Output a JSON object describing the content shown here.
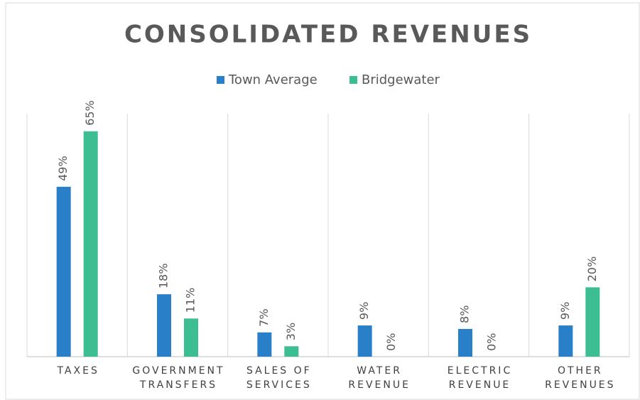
{
  "chart_data": {
    "type": "bar",
    "title": "CONSOLIDATED REVENUES",
    "categories": [
      "TAXES",
      "GOVERNMENT TRANSFERS",
      "SALES OF SERVICES",
      "WATER REVENUE",
      "ELECTRIC REVENUE",
      "OTHER REVENUES"
    ],
    "series": [
      {
        "name": "Town Average",
        "color": "#2a7fc9",
        "values": [
          49,
          18,
          7,
          9,
          8,
          9
        ],
        "value_labels": [
          "49%",
          "18%",
          "7%",
          "9%",
          "8%",
          "9%"
        ]
      },
      {
        "name": "Bridgewater",
        "color": "#3dbd92",
        "values": [
          65,
          11,
          3,
          0,
          0,
          20
        ],
        "value_labels": [
          "65%",
          "11%",
          "3%",
          "0%",
          "0%",
          "20%"
        ]
      }
    ],
    "legend": "top"
  }
}
